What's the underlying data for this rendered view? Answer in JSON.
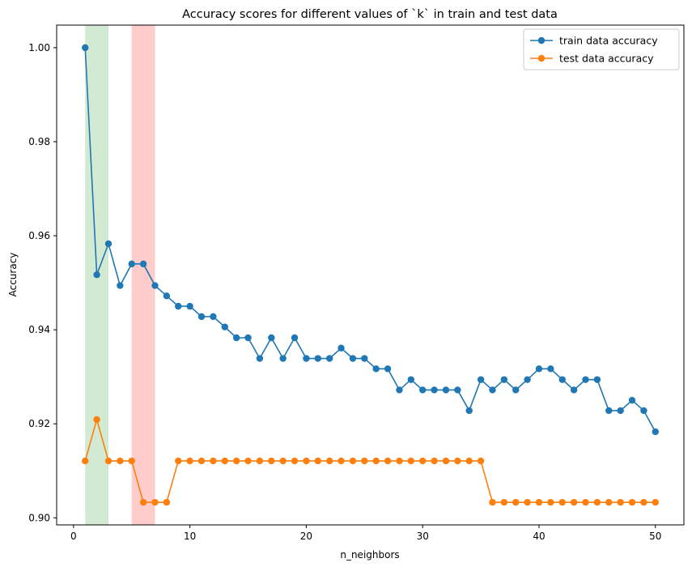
{
  "chart_data": {
    "type": "line",
    "title": "Accuracy scores for different values of `k` in train and test data",
    "xlabel": "n_neighbors",
    "ylabel": "Accuracy",
    "xlim": [
      -1.45,
      52.45
    ],
    "ylim": [
      0.8985,
      1.0048
    ],
    "xticks": [
      0,
      10,
      20,
      30,
      40,
      50
    ],
    "yticks": [
      0.9,
      0.92,
      0.94,
      0.96,
      0.98,
      1.0
    ],
    "xtick_labels": [
      "0",
      "10",
      "20",
      "30",
      "40",
      "50"
    ],
    "ytick_labels": [
      "0.90",
      "0.92",
      "0.94",
      "0.96",
      "0.98",
      "1.00"
    ],
    "grid": false,
    "legend_position": "top-right",
    "shaded_spans": [
      {
        "x0": 1,
        "x1": 3,
        "color": "#2ca02c",
        "alpha": 0.22
      },
      {
        "x0": 5,
        "x1": 7,
        "color": "#ff0000",
        "alpha": 0.2
      }
    ],
    "x": [
      1,
      2,
      3,
      4,
      5,
      6,
      7,
      8,
      9,
      10,
      11,
      12,
      13,
      14,
      15,
      16,
      17,
      18,
      19,
      20,
      21,
      22,
      23,
      24,
      25,
      26,
      27,
      28,
      29,
      30,
      31,
      32,
      33,
      34,
      35,
      36,
      37,
      38,
      39,
      40,
      41,
      42,
      43,
      44,
      45,
      46,
      47,
      48,
      49,
      50
    ],
    "series": [
      {
        "name": "train data accuracy",
        "color": "#1f77b4",
        "values": [
          1.0,
          0.9517,
          0.9583,
          0.9494,
          0.954,
          0.954,
          0.9494,
          0.9472,
          0.945,
          0.945,
          0.9428,
          0.9428,
          0.9406,
          0.9383,
          0.9383,
          0.9339,
          0.9383,
          0.9339,
          0.9383,
          0.9339,
          0.9339,
          0.9339,
          0.9361,
          0.9339,
          0.9339,
          0.9317,
          0.9317,
          0.9272,
          0.9294,
          0.9272,
          0.9272,
          0.9272,
          0.9272,
          0.9228,
          0.9294,
          0.9272,
          0.9294,
          0.9272,
          0.9294,
          0.9317,
          0.9317,
          0.9294,
          0.9272,
          0.9294,
          0.9294,
          0.9228,
          0.9228,
          0.925,
          0.9228,
          0.9183
        ]
      },
      {
        "name": "test data accuracy",
        "color": "#ff7f0e",
        "values": [
          0.9121,
          0.9209,
          0.9121,
          0.9121,
          0.9121,
          0.9033,
          0.9033,
          0.9033,
          0.9121,
          0.9121,
          0.9121,
          0.9121,
          0.9121,
          0.9121,
          0.9121,
          0.9121,
          0.9121,
          0.9121,
          0.9121,
          0.9121,
          0.9121,
          0.9121,
          0.9121,
          0.9121,
          0.9121,
          0.9121,
          0.9121,
          0.9121,
          0.9121,
          0.9121,
          0.9121,
          0.9121,
          0.9121,
          0.9121,
          0.9121,
          0.9033,
          0.9033,
          0.9033,
          0.9033,
          0.9033,
          0.9033,
          0.9033,
          0.9033,
          0.9033,
          0.9033,
          0.9033,
          0.9033,
          0.9033,
          0.9033,
          0.9033
        ]
      }
    ]
  }
}
